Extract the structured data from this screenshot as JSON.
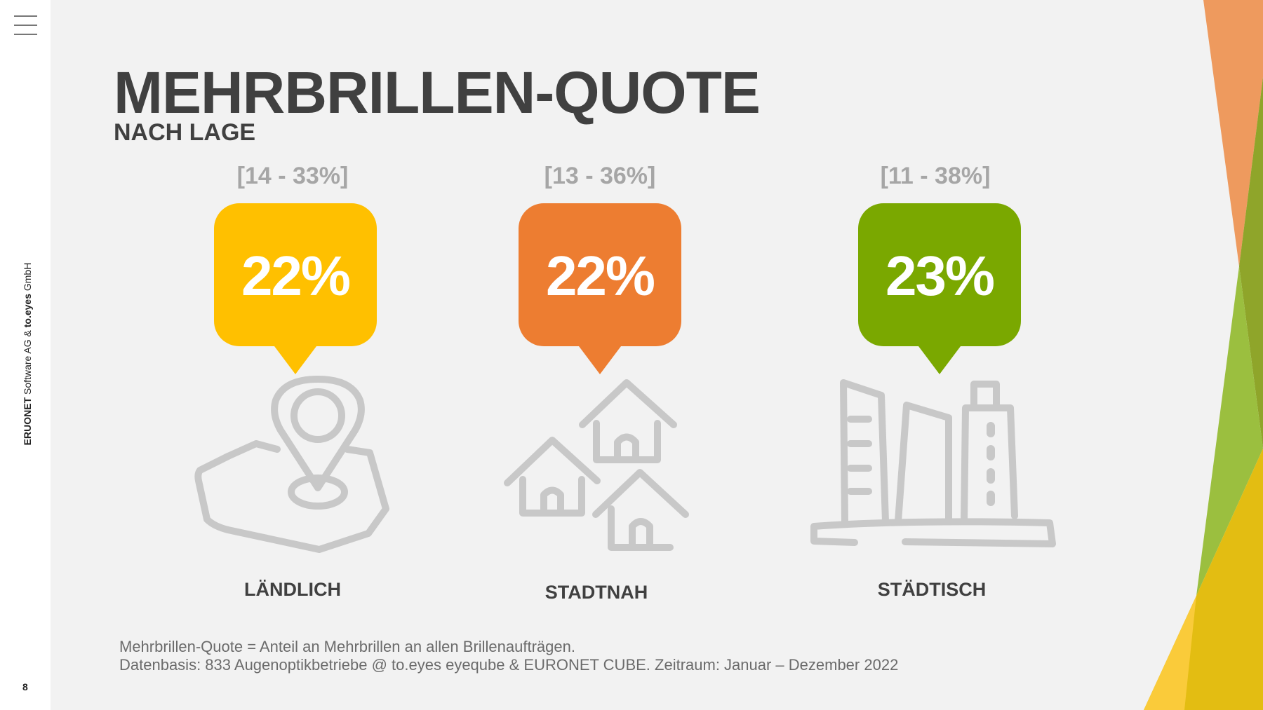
{
  "sidebar": {
    "menu_icon": "hamburger-menu-icon",
    "company_bold_1": "ERUONET",
    "company_text_1": " Software AG & ",
    "company_bold_2": "to.eyes",
    "company_text_2": " GmbH",
    "page_number": "8"
  },
  "slide": {
    "title": "MEHRBRILLEN-QUOTE",
    "subtitle": "NACH LAGE",
    "categories": [
      {
        "label": "LÄNDLICH",
        "value": "22%",
        "range": "[14 - 33%]",
        "color": "#FFC000",
        "icon": "map-pin-icon"
      },
      {
        "label": "STADTNAH",
        "value": "22%",
        "range": "[13 - 36%]",
        "color": "#ED7D31",
        "icon": "houses-icon"
      },
      {
        "label": "STÄDTISCH",
        "value": "23%",
        "range": "[11 - 38%]",
        "color": "#7AA800",
        "icon": "city-buildings-icon"
      }
    ],
    "footnote_1": "Mehrbrillen-Quote = Anteil an Mehrbrillen an allen Brillenaufträgen.",
    "footnote_2": "Datenbasis: 833 Augenoptikbetriebe @ to.eyes eyeqube & EURONET CUBE. Zeitraum: Januar – Dezember 2022"
  },
  "colors": {
    "background": "#F2F2F2",
    "text": "#404040",
    "range_text": "#A6A6A6",
    "icon_gray": "#C8C8C8"
  }
}
